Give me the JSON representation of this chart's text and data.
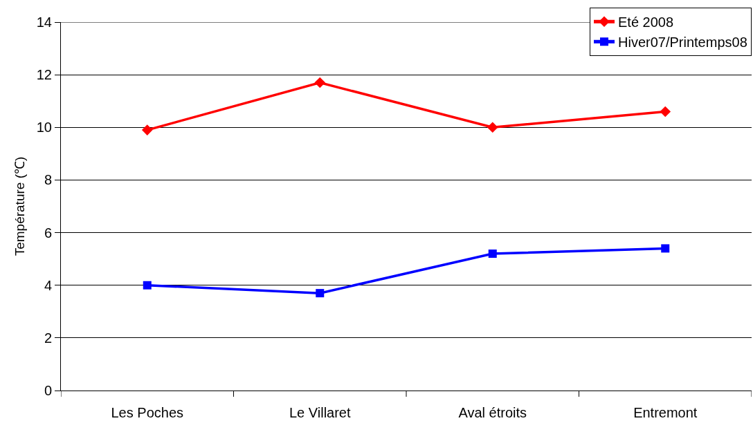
{
  "chart_data": {
    "type": "line",
    "ylabel": "Température (℃)",
    "categories": [
      "Les Poches",
      "Le Villaret",
      "Aval étroits",
      "Entremont"
    ],
    "series": [
      {
        "name": "Eté 2008",
        "color": "#ff0000",
        "marker": "diamond",
        "values": [
          9.9,
          11.7,
          10.0,
          10.6
        ]
      },
      {
        "name": "Hiver07/Printemps08",
        "color": "#0000ff",
        "marker": "square",
        "values": [
          4.0,
          3.7,
          5.2,
          5.4
        ]
      }
    ],
    "ylim": [
      0,
      14
    ],
    "yticks": [
      0,
      2,
      4,
      6,
      8,
      10,
      12,
      14
    ],
    "grid": "y",
    "legend": "top right",
    "line_style": "solid"
  }
}
